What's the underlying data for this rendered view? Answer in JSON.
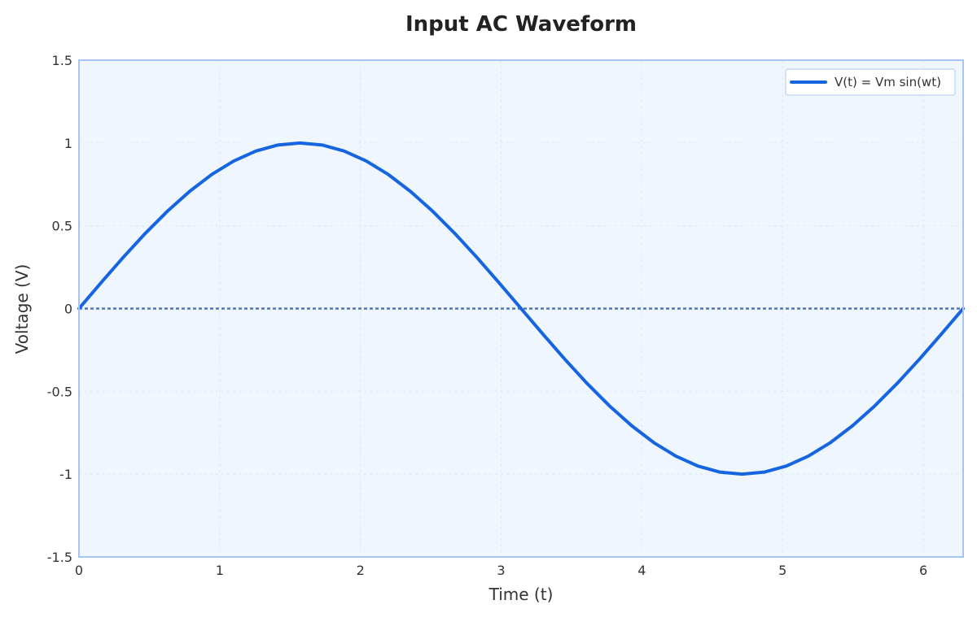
{
  "chart_data": {
    "type": "line",
    "title": "Input AC Waveform",
    "xlabel": "Time (t)",
    "ylabel": "Voltage (V)",
    "xlim": [
      0,
      6.2832
    ],
    "ylim": [
      -1.5,
      1.5
    ],
    "x_ticks": [
      0,
      1,
      2,
      3,
      4,
      5,
      6
    ],
    "x_tick_labels": [
      "0",
      "1",
      "2",
      "3",
      "4",
      "5",
      "6"
    ],
    "y_ticks": [
      -1.5,
      -1,
      -0.5,
      0,
      0.5,
      1,
      1.5
    ],
    "y_tick_labels": [
      "-1.5",
      "-1",
      "-0.5",
      "0",
      "0.5",
      "1",
      "1.5"
    ],
    "grid": true,
    "legend_position": "top-right",
    "series": [
      {
        "name": "V(t) = Vm sin(wt)",
        "color": "#1565e0",
        "x": [
          0,
          0.1571,
          0.3142,
          0.4712,
          0.6283,
          0.7854,
          0.9425,
          1.0996,
          1.2566,
          1.4137,
          1.5708,
          1.7279,
          1.885,
          2.042,
          2.1991,
          2.3562,
          2.5133,
          2.6704,
          2.8274,
          2.9845,
          3.1416,
          3.2987,
          3.4558,
          3.6128,
          3.7699,
          3.927,
          4.0841,
          4.2412,
          4.3982,
          4.5553,
          4.7124,
          4.8695,
          5.0265,
          5.1836,
          5.3407,
          5.4978,
          5.6549,
          5.8119,
          5.969,
          6.1261,
          6.2832
        ],
        "values": [
          0,
          0.1564,
          0.309,
          0.454,
          0.5878,
          0.7071,
          0.809,
          0.891,
          0.9511,
          0.9877,
          1,
          0.9877,
          0.9511,
          0.891,
          0.809,
          0.7071,
          0.5878,
          0.454,
          0.309,
          0.1564,
          0,
          -0.1564,
          -0.309,
          -0.454,
          -0.5878,
          -0.7071,
          -0.809,
          -0.891,
          -0.9511,
          -0.9877,
          -1,
          -0.9877,
          -0.9511,
          -0.891,
          -0.809,
          -0.7071,
          -0.5878,
          -0.454,
          -0.309,
          -0.1564,
          0
        ]
      }
    ],
    "reference_line": {
      "y": 0,
      "color": "#1e4fa0",
      "style": "dotted"
    },
    "colors": {
      "plot_background": "#f0f6fd",
      "frame": "#a7c4f2",
      "grid": "#dbe6f5"
    }
  }
}
